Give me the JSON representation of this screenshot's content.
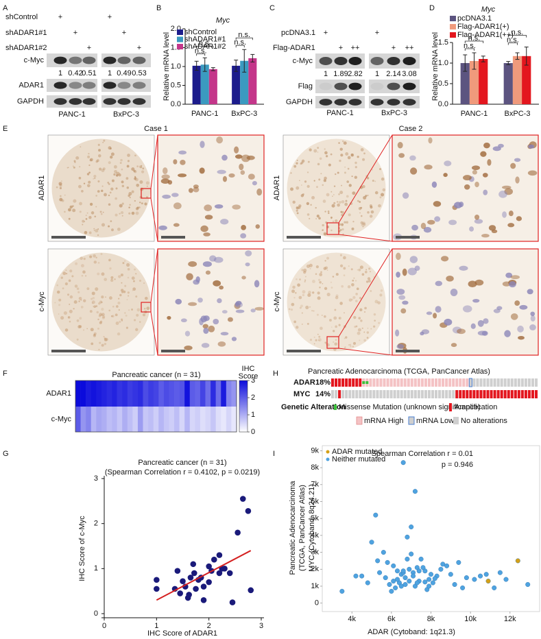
{
  "figure": {
    "panel_labels": [
      "A",
      "B",
      "C",
      "D",
      "E",
      "F",
      "G",
      "H",
      "I"
    ],
    "A": {
      "treatments": [
        {
          "name": "shControl",
          "marks": [
            "+",
            "+"
          ]
        },
        {
          "name": "shADAR1#1",
          "marks": [
            "+",
            "+"
          ]
        },
        {
          "name": "shADAR1#2",
          "marks": [
            "+",
            "+"
          ]
        }
      ],
      "blots": [
        "c-Myc",
        "ADAR1",
        "GAPDH"
      ],
      "quant": [
        [
          1,
          0.42,
          0.51
        ],
        [
          1,
          0.49,
          0.53
        ]
      ],
      "cell_lines": [
        "PANC-1",
        "BxPC-3"
      ]
    },
    "C": {
      "treatments": [
        {
          "name": "pcDNA3.1",
          "marks": [
            "+",
            "+"
          ]
        },
        {
          "name": "Flag-ADAR1",
          "marks": [
            "+",
            "++",
            "+",
            "++"
          ]
        }
      ],
      "blots": [
        "c-Myc",
        "Flag",
        "GAPDH"
      ],
      "quant": [
        [
          1,
          1.89,
          2.82
        ],
        [
          1,
          2.14,
          3.08
        ]
      ],
      "cell_lines": [
        "PANC-1",
        "BxPC-3"
      ]
    },
    "E": {
      "cases": [
        "Case 1",
        "Case 2"
      ],
      "rows": [
        "ADAR1",
        "c-Myc"
      ]
    },
    "H": {
      "title": "Pancreatic Adenocarcinoma (TCGA, PanCancer Atlas)",
      "genes": [
        {
          "name": "ADAR",
          "percent": "18%"
        },
        {
          "name": "MYC",
          "percent": "14%"
        }
      ],
      "legend_title": "Genetic Alteration",
      "legend": [
        "Missense Mutation (unknown significance)",
        "Amplification",
        "mRNA High",
        "mRNA Low",
        "No alterations"
      ]
    }
  },
  "chart_data": [
    {
      "type": "bar",
      "title": "Myc",
      "ylabel": "Relative mRNA level",
      "categories": [
        "PANC-1",
        "BxPC-3"
      ],
      "series": [
        {
          "name": "shControl",
          "color": "#1c1c8c",
          "values": [
            1.02,
            1.02
          ],
          "errors": [
            0.12,
            0.15
          ]
        },
        {
          "name": "shADAR1#1",
          "color": "#3b9ac0",
          "values": [
            1.05,
            1.15
          ],
          "errors": [
            0.18,
            0.3
          ]
        },
        {
          "name": "shADAR1#2",
          "color": "#c4368a",
          "values": [
            0.93,
            1.22
          ],
          "errors": [
            0.04,
            0.1
          ]
        }
      ],
      "significance": [
        "n.s.",
        "n.s.",
        "n.s.",
        "n.s."
      ],
      "ylim": [
        0,
        2
      ],
      "yticks": [
        {
          "value": 0,
          "label": "0.0"
        },
        {
          "value": 0.5,
          "label": "0.5"
        },
        {
          "value": 1,
          "label": "1.0"
        },
        {
          "value": 1.5,
          "label": "1.5"
        },
        {
          "value": 2,
          "label": "2.0"
        }
      ]
    },
    {
      "type": "bar",
      "title": "Myc",
      "ylabel": "Relative mRNA level",
      "categories": [
        "PANC-1",
        "BxPC-3"
      ],
      "series": [
        {
          "name": "pcDNA3.1",
          "color": "#5c5480",
          "values": [
            1.0,
            1.0
          ],
          "errors": [
            0.2,
            0.04
          ]
        },
        {
          "name": "Flag-ADAR1(+)",
          "color": "#f09a7c",
          "values": [
            1.05,
            1.17
          ],
          "errors": [
            0.2,
            0.08
          ]
        },
        {
          "name": "Flag-ADAR1(++)",
          "color": "#e3161e",
          "values": [
            1.1,
            1.17
          ],
          "errors": [
            0.07,
            0.22
          ]
        }
      ],
      "significance": [
        "n.s.",
        "n.s.",
        "n.s.",
        "n.s."
      ],
      "ylim": [
        0,
        1.5
      ],
      "yticks": [
        {
          "value": 0,
          "label": "0.0"
        },
        {
          "value": 0.5,
          "label": "0.5"
        },
        {
          "value": 1,
          "label": "1.0"
        },
        {
          "value": 1.5,
          "label": "1.5"
        }
      ]
    },
    {
      "type": "heatmap",
      "title": "Pancreatic cancer (n = 31)",
      "rows": [
        "ADAR1",
        "c-Myc"
      ],
      "values": [
        [
          3,
          3,
          2.8,
          2.9,
          2.8,
          2.7,
          2.6,
          2.7,
          2.5,
          2.6,
          2.4,
          2.5,
          2.6,
          2.2,
          2.4,
          2.3,
          2,
          2.2,
          2.1,
          2,
          2.1,
          2.9,
          2,
          1.9,
          2.3,
          1.8,
          2.6,
          1.8,
          2.8,
          1.5,
          1.3
        ],
        [
          2,
          1.3,
          1.5,
          0.9,
          1.1,
          1,
          0.8,
          0.9,
          0.7,
          1,
          0.8,
          0.6,
          1.2,
          0.7,
          0.8,
          0.6,
          0.9,
          0.7,
          0.6,
          0.8,
          0.5,
          0.9,
          0.5,
          0.6,
          0.4,
          0.5,
          0.7,
          0.4,
          0.3,
          0.5,
          0.3
        ]
      ],
      "colorbar_label": [
        "IHC",
        "Score"
      ],
      "zlim": [
        0,
        3
      ],
      "zticks": [
        0,
        1,
        2,
        3
      ],
      "colors": [
        "#ffffff",
        "#0b0bdc"
      ]
    },
    {
      "type": "scatter",
      "title": "Pancreatic cancer (n = 31)",
      "subtitle": "(Spearman Correlation r = 0.4102, p = 0.0219)",
      "xlabel": "IHC Score of ADAR1",
      "ylabel": "IHC Score of c-Myc",
      "x": [
        1.0,
        1.0,
        1.35,
        1.4,
        1.45,
        1.5,
        1.55,
        1.6,
        1.62,
        1.65,
        1.7,
        1.72,
        1.75,
        1.8,
        1.85,
        1.9,
        1.9,
        2.0,
        2.0,
        2.05,
        2.1,
        2.2,
        2.2,
        2.25,
        2.3,
        2.4,
        2.45,
        2.55,
        2.65,
        2.75,
        2.8
      ],
      "values": [
        0.75,
        0.55,
        0.55,
        0.95,
        0.45,
        0.72,
        0.6,
        0.35,
        0.42,
        0.8,
        1.1,
        0.9,
        0.55,
        0.75,
        0.8,
        0.6,
        0.3,
        1.05,
        0.7,
        0.95,
        1.2,
        1.3,
        0.9,
        1.0,
        1.0,
        0.9,
        0.25,
        1.8,
        2.55,
        2.28,
        0.52
      ],
      "color": "#1a1a7a",
      "trend": {
        "x": [
          1,
          2.8
        ],
        "y": [
          0.3,
          1.4
        ],
        "color": "#d42020"
      },
      "xlim": [
        0,
        3
      ],
      "ylim": [
        0,
        3
      ],
      "xticks": [
        0,
        1,
        2,
        3
      ],
      "yticks": [
        0,
        1,
        2,
        3
      ]
    },
    {
      "type": "scatter",
      "ylabel_title": [
        "Pancreatic Adenocarcinoma",
        "(TCGA, PanCancer Atlas)"
      ],
      "ylabel": "MYC (Cytoband: 8q24.21)",
      "xlabel": "ADAR (Cytoband: 1q21.3)",
      "annotations": [
        "Spearman Correlation r = 0.01",
        "p = 0.946"
      ],
      "series": [
        {
          "name": "ADAR mutated",
          "color": "#d4a017",
          "x": [
            12400,
            10900
          ],
          "values": [
            2500,
            1300
          ]
        },
        {
          "name": "Neither mutated",
          "color": "#4fa3e0",
          "x": [
            6600,
            7200,
            5200,
            7000,
            5000,
            6800,
            3500,
            4200,
            12900,
            5800,
            6100,
            6300,
            6500,
            6700,
            6900,
            7100,
            7300,
            7500,
            7700,
            7900,
            8100,
            8300,
            8600,
            9000,
            9400,
            9800,
            10200,
            5600,
            5900,
            6200,
            6400,
            6600,
            6800,
            7000,
            7200,
            7400,
            7600,
            7800,
            8000,
            8500,
            9200,
            10500,
            11200,
            11500,
            4800,
            5300,
            5700,
            6000,
            6300,
            6500,
            6700,
            6900,
            7100,
            7400,
            7700,
            8200,
            8800,
            9600,
            10800,
            4500,
            5400,
            6100,
            6600,
            7300,
            7900,
            11800
          ],
          "values": [
            8300,
            6600,
            5200,
            4500,
            3600,
            3900,
            700,
            1600,
            1100,
            2400,
            2200,
            1900,
            1700,
            1500,
            1300,
            1800,
            2100,
            2600,
            1900,
            1400,
            1200,
            1600,
            2300,
            1700,
            2400,
            1500,
            1400,
            3000,
            1100,
            900,
            1200,
            1800,
            2600,
            2900,
            1000,
            1300,
            2100,
            800,
            1700,
            2000,
            1100,
            1600,
            900,
            1800,
            1200,
            2500,
            1500,
            700,
            1400,
            1000,
            1100,
            2000,
            1600,
            1900,
            1250,
            1450,
            2200,
            900,
            1700,
            1600,
            1800,
            1300,
            1900,
            1200,
            1000,
            1400
          ]
        }
      ],
      "xlim": [
        2500,
        13500
      ],
      "ylim": [
        -500,
        9300
      ],
      "xticks": [
        {
          "value": 4000,
          "label": "4k"
        },
        {
          "value": 6000,
          "label": "6k"
        },
        {
          "value": 8000,
          "label": "8k"
        },
        {
          "value": 10000,
          "label": "10k"
        },
        {
          "value": 12000,
          "label": "12k"
        }
      ],
      "yticks": [
        0,
        {
          "value": 1000,
          "label": "1k"
        },
        {
          "value": 2000,
          "label": "2k"
        },
        {
          "value": 3000,
          "label": "3k"
        },
        {
          "value": 4000,
          "label": "4k"
        },
        {
          "value": 5000,
          "label": "5k"
        },
        {
          "value": 6000,
          "label": "6k"
        },
        {
          "value": 7000,
          "label": "7k"
        },
        {
          "value": 8000,
          "label": "8k"
        },
        {
          "value": 9000,
          "label": "9k"
        }
      ]
    }
  ]
}
